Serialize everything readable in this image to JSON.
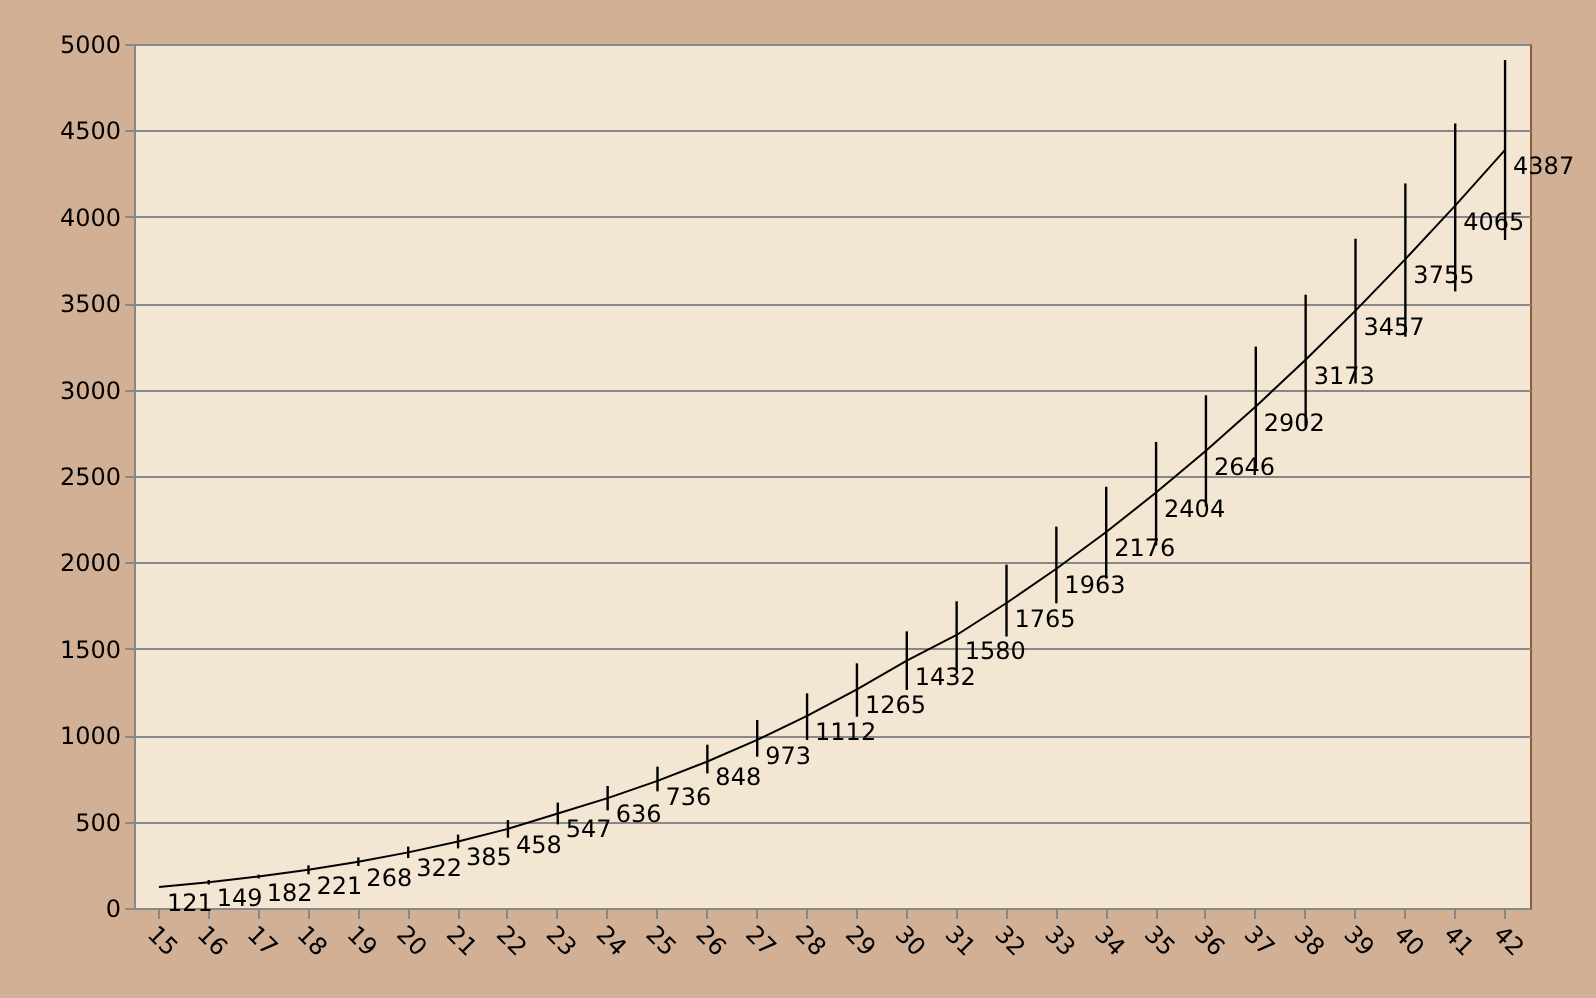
{
  "chart_data": {
    "type": "line",
    "categories": [
      "15",
      "16",
      "17",
      "18",
      "19",
      "20",
      "21",
      "22",
      "23",
      "24",
      "25",
      "26",
      "27",
      "28",
      "29",
      "30",
      "31",
      "32",
      "33",
      "34",
      "35",
      "36",
      "37",
      "38",
      "39",
      "40",
      "41",
      "42"
    ],
    "series": [
      {
        "color": "#000000",
        "values": [
          121,
          149,
          182,
          221,
          268,
          322,
          385,
          458,
          547,
          636,
          736,
          848,
          973,
          1112,
          1265,
          1432,
          1580,
          1765,
          1963,
          2176,
          2404,
          2646,
          2902,
          3173,
          3457,
          3755,
          4065,
          4387
        ],
        "errors": [
          null,
          [
            136,
            162
          ],
          [
            171,
            193
          ],
          [
            195,
            247
          ],
          [
            243,
            293
          ],
          [
            289,
            355
          ],
          [
            345,
            425
          ],
          [
            407,
            509
          ],
          [
            484,
            610
          ],
          [
            565,
            706
          ],
          [
            675,
            818
          ],
          [
            779,
            945
          ],
          [
            876,
            1088
          ],
          [
            972,
            1242
          ],
          [
            1107,
            1416
          ],
          [
            1262,
            1601
          ],
          [
            1377,
            1775
          ],
          [
            1571,
            1987
          ],
          [
            1763,
            2207
          ],
          [
            1906,
            2438
          ],
          [
            2098,
            2697
          ],
          [
            2323,
            2967
          ],
          [
            2543,
            3249
          ],
          [
            2786,
            3549
          ],
          [
            3036,
            3873
          ],
          [
            3306,
            4193
          ],
          [
            3568,
            4540
          ],
          [
            3866,
            4907
          ]
        ]
      }
    ],
    "data_labels": true,
    "marker": "none",
    "ylim": [
      0,
      5000
    ],
    "yticks": [
      0,
      500,
      1000,
      1500,
      2000,
      2500,
      3000,
      3500,
      4000,
      4500,
      5000
    ],
    "grid": "y"
  }
}
